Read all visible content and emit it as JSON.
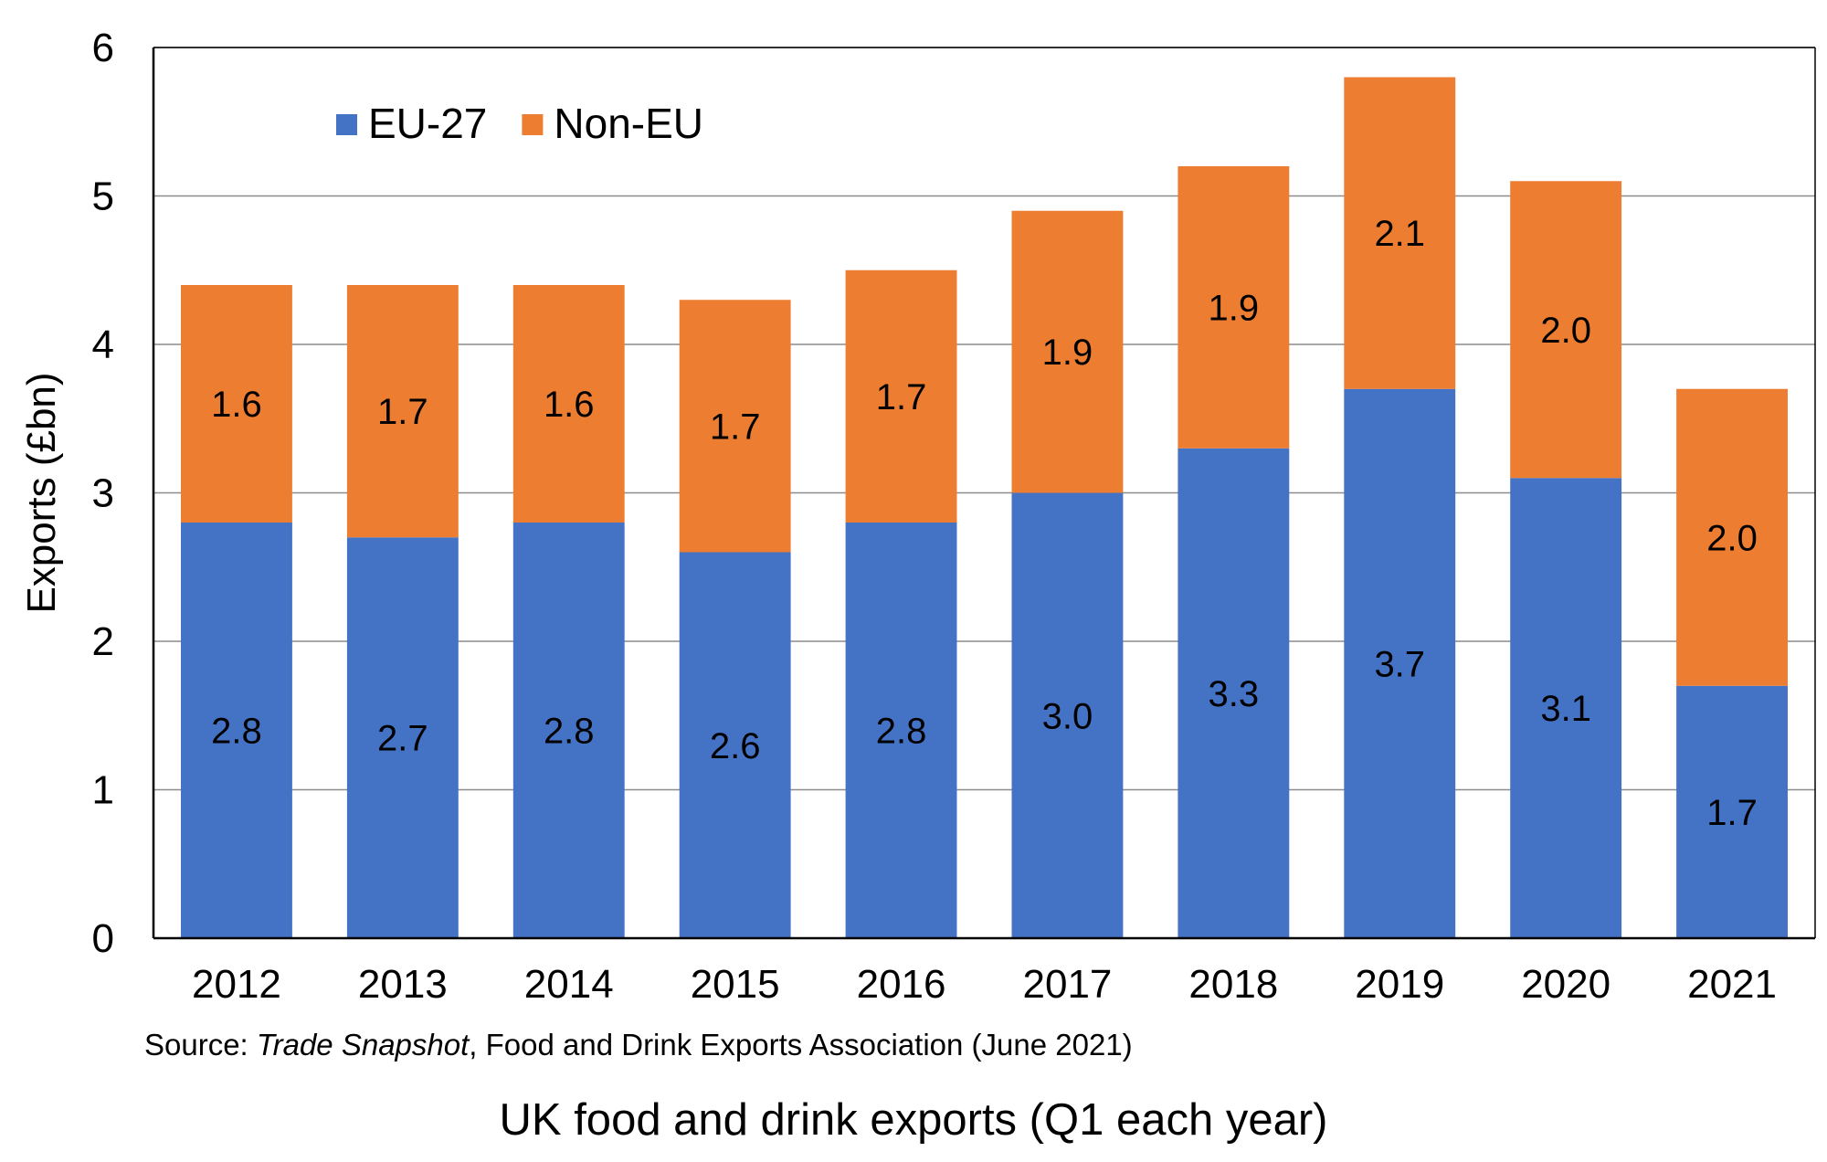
{
  "chart_data": {
    "type": "bar",
    "stacked": true,
    "categories": [
      "2012",
      "2013",
      "2014",
      "2015",
      "2016",
      "2017",
      "2018",
      "2019",
      "2020",
      "2021"
    ],
    "series": [
      {
        "name": "EU-27",
        "color": "#4472C4",
        "values": [
          2.8,
          2.7,
          2.8,
          2.6,
          2.8,
          3.0,
          3.3,
          3.7,
          3.1,
          1.7
        ],
        "labels": [
          "2.8",
          "2.7",
          "2.8",
          "2.6",
          "2.8",
          "3.0",
          "3.3",
          "3.7",
          "3.1",
          "1.7"
        ]
      },
      {
        "name": "Non-EU",
        "color": "#ED7D31",
        "values": [
          1.6,
          1.7,
          1.6,
          1.7,
          1.7,
          1.9,
          1.9,
          2.1,
          2.0,
          2.0
        ],
        "labels": [
          "1.6",
          "1.7",
          "1.6",
          "1.7",
          "1.7",
          "1.9",
          "1.9",
          "2.1",
          "2.0",
          "2.0"
        ]
      }
    ],
    "ylabel": "Exports (£bn)",
    "xlabel": "",
    "ylim": [
      0,
      6
    ],
    "yticks": [
      "0",
      "1",
      "2",
      "3",
      "4",
      "5",
      "6"
    ],
    "grid": true,
    "legend_position": "top-left"
  },
  "source": {
    "prefix": "Source: ",
    "title": "Trade Snapshot",
    "suffix": ", Food and Drink Exports Association (June 2021)"
  },
  "caption": "UK food and drink exports (Q1 each year)"
}
